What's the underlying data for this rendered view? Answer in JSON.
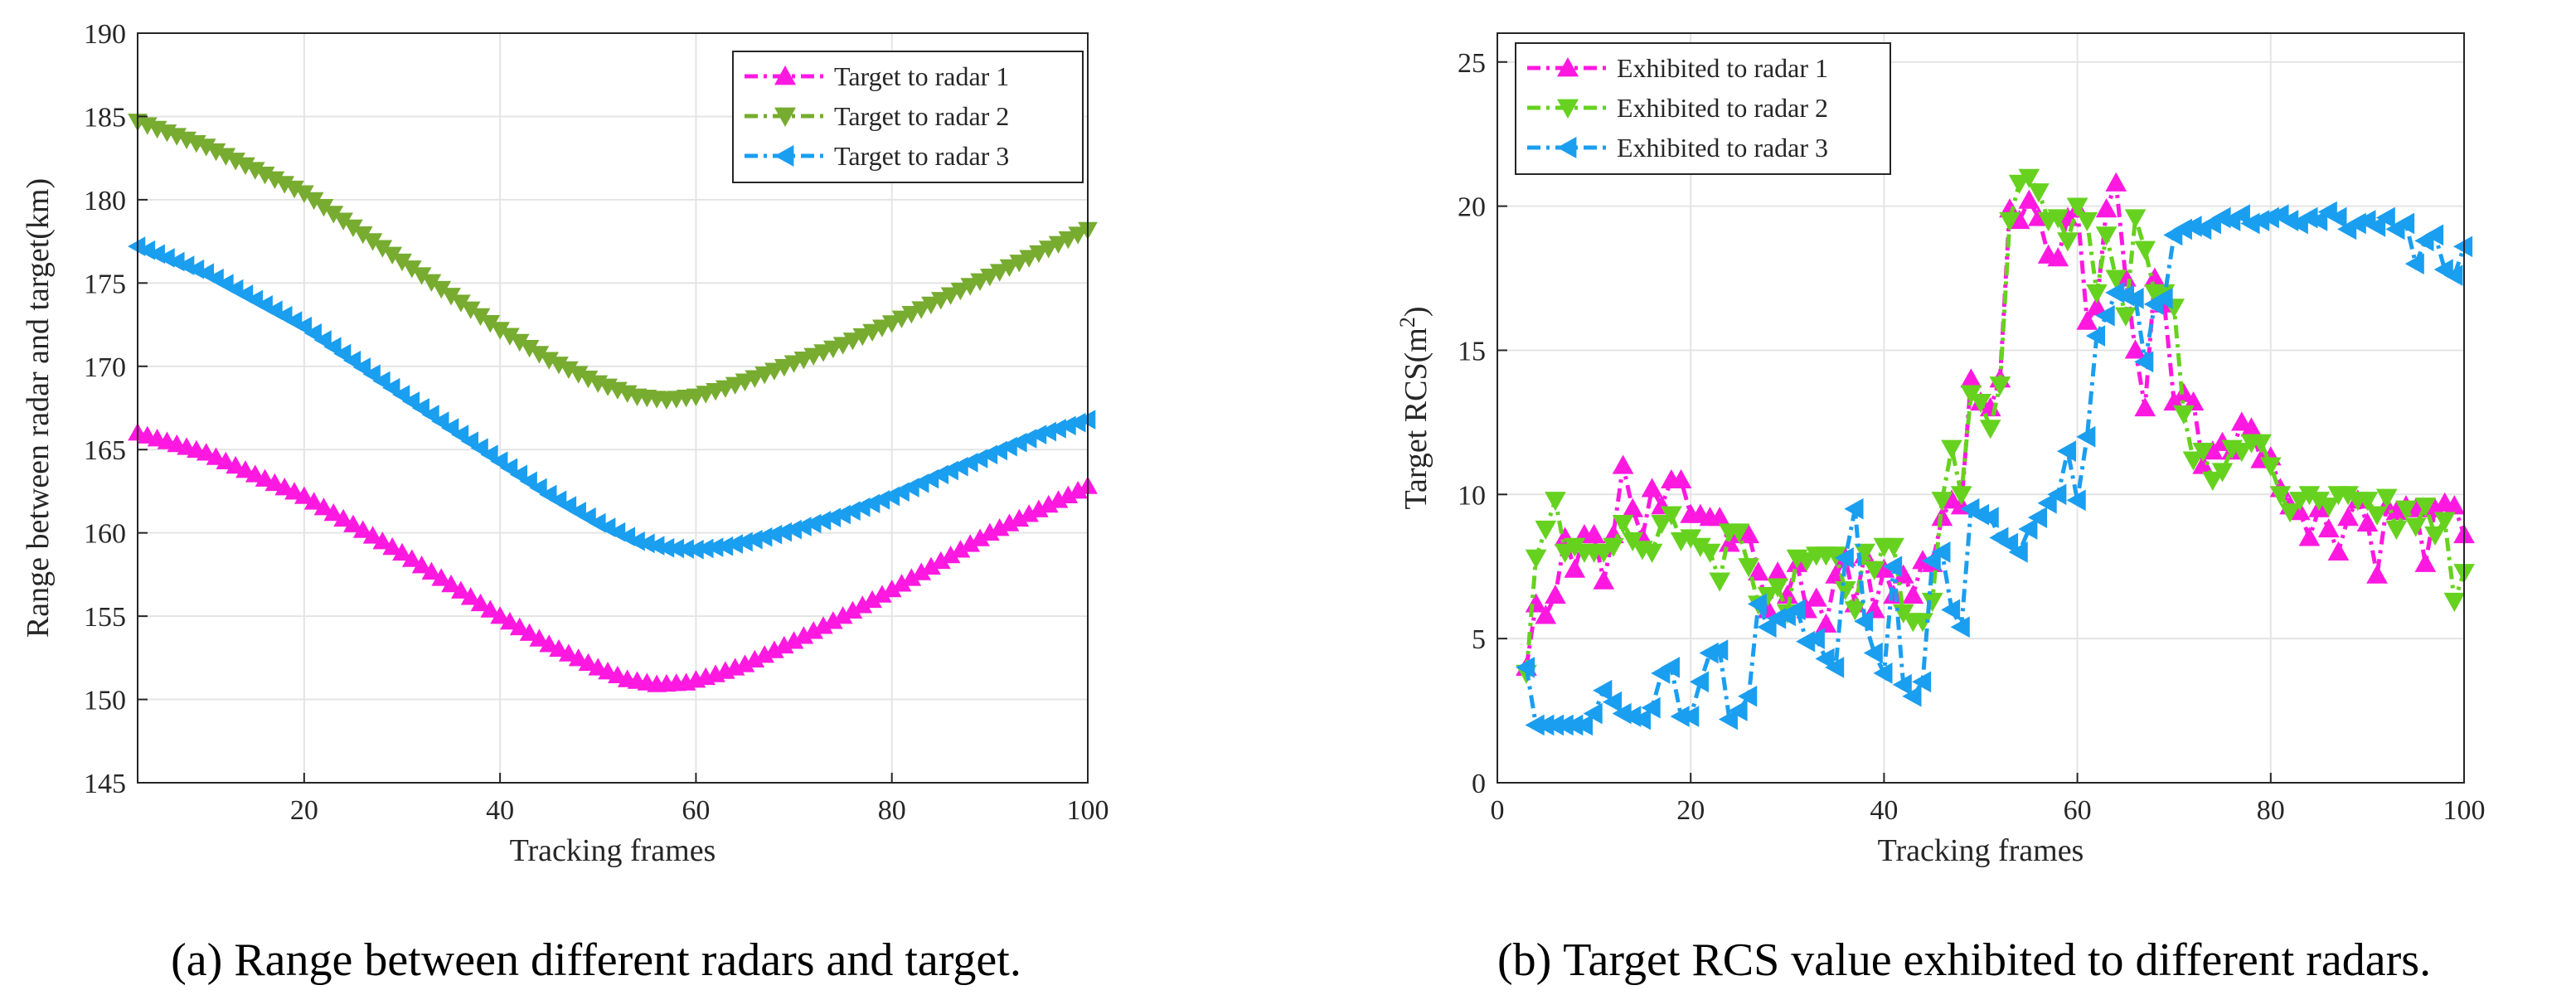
{
  "chart_data": [
    {
      "panel": "a",
      "type": "line",
      "xlabel": "Tracking frames",
      "ylabel": "Range between radar and target(km)",
      "xlim": [
        3,
        100
      ],
      "ylim": [
        145,
        190
      ],
      "xticks": [
        20,
        40,
        60,
        80,
        100
      ],
      "yticks": [
        145,
        150,
        155,
        160,
        165,
        170,
        175,
        180,
        185,
        190
      ],
      "grid": true,
      "legend_position": "top-right",
      "caption_label": "(a)",
      "caption_text": "Range between different radars and target.",
      "series": [
        {
          "name": "Target to radar 1",
          "color": "#ff19e0",
          "marker": "triangle-up",
          "x": [
            3,
            10,
            20,
            30,
            40,
            45,
            50,
            53,
            56,
            59,
            62,
            65,
            70,
            75,
            80,
            85,
            90,
            95,
            100
          ],
          "y": [
            166.0,
            164.8,
            162.2,
            158.8,
            155.0,
            153.3,
            151.9,
            151.2,
            150.9,
            151.0,
            151.5,
            152.1,
            153.5,
            155.0,
            156.6,
            158.3,
            160.0,
            161.4,
            162.8
          ]
        },
        {
          "name": "Target to radar 2",
          "color": "#77ac30",
          "marker": "triangle-down",
          "x": [
            3,
            10,
            20,
            30,
            40,
            45,
            50,
            54,
            57,
            60,
            63,
            66,
            70,
            75,
            80,
            85,
            90,
            95,
            100
          ],
          "y": [
            184.7,
            183.2,
            180.4,
            176.3,
            172.2,
            170.4,
            169.0,
            168.2,
            168.0,
            168.2,
            168.7,
            169.3,
            170.2,
            171.3,
            172.6,
            174.0,
            175.4,
            176.8,
            178.2
          ]
        },
        {
          "name": "Target to radar 3",
          "color": "#1a9ef0",
          "marker": "triangle-left",
          "x": [
            3,
            10,
            20,
            30,
            40,
            45,
            50,
            54,
            57,
            60,
            63,
            66,
            70,
            75,
            80,
            85,
            90,
            95,
            100
          ],
          "y": [
            177.2,
            175.6,
            172.4,
            168.3,
            164.3,
            162.3,
            160.6,
            159.5,
            159.1,
            159.0,
            159.2,
            159.6,
            160.2,
            161.1,
            162.2,
            163.5,
            164.7,
            165.9,
            166.8
          ]
        }
      ]
    },
    {
      "panel": "b",
      "type": "line",
      "xlabel": "Tracking frames",
      "ylabel_prefix": "Target RCS(m",
      "ylabel_sup": "2",
      "ylabel_suffix": ")",
      "xlim": [
        0,
        100
      ],
      "ylim": [
        0,
        26
      ],
      "xticks": [
        0,
        20,
        40,
        60,
        80,
        100
      ],
      "yticks": [
        0,
        5,
        10,
        15,
        20,
        25
      ],
      "grid": true,
      "legend_position": "top-left",
      "caption_label": "(b)",
      "caption_text": "Target RCS value exhibited to different radars.",
      "series": [
        {
          "name": "Exhibited to radar 1",
          "color": "#ff19e0",
          "marker": "triangle-up",
          "x": [
            3,
            4,
            5,
            6,
            7,
            8,
            9,
            10,
            11,
            12,
            13,
            14,
            15,
            16,
            17,
            18,
            19,
            20,
            21,
            22,
            23,
            24,
            25,
            26,
            27,
            28,
            29,
            30,
            31,
            32,
            33,
            34,
            35,
            36,
            37,
            38,
            39,
            40,
            41,
            42,
            43,
            44,
            45,
            46,
            47,
            48,
            49,
            50,
            51,
            52,
            53,
            54,
            55,
            56,
            57,
            58,
            59,
            60,
            61,
            62,
            63,
            64,
            65,
            66,
            67,
            68,
            69,
            70,
            71,
            72,
            73,
            74,
            75,
            76,
            77,
            78,
            79,
            80,
            81,
            82,
            83,
            84,
            85,
            86,
            87,
            88,
            89,
            90,
            91,
            92,
            93,
            94,
            95,
            96,
            97,
            98,
            99,
            100
          ],
          "y": [
            4.0,
            6.2,
            5.8,
            6.5,
            8.5,
            7.4,
            8.6,
            8.6,
            7.0,
            8.6,
            11.0,
            9.5,
            8.5,
            10.2,
            9.6,
            10.5,
            10.5,
            9.3,
            9.3,
            9.2,
            9.2,
            8.3,
            8.6,
            8.6,
            7.3,
            6.0,
            7.3,
            6.5,
            7.6,
            6.0,
            6.4,
            5.5,
            7.2,
            7.8,
            6.2,
            7.9,
            6.0,
            7.4,
            6.5,
            7.2,
            6.5,
            7.7,
            7.6,
            9.2,
            9.8,
            9.6,
            14.0,
            13.2,
            13.0,
            14.0,
            19.9,
            19.5,
            20.2,
            19.6,
            18.3,
            18.2,
            19.6,
            19.9,
            16.0,
            16.5,
            19.9,
            20.8,
            17.5,
            15.0,
            13.0,
            17.5,
            16.6,
            13.2,
            13.5,
            13.2,
            11.0,
            11.5,
            11.8,
            11.5,
            12.5,
            12.3,
            11.2,
            11.3,
            10.2,
            9.6,
            9.4,
            8.5,
            9.5,
            8.8,
            8.0,
            9.2,
            9.8,
            9.0,
            7.2,
            9.6,
            9.4,
            9.6,
            9.5,
            7.6,
            9.5,
            9.7,
            9.6,
            8.6
          ]
        },
        {
          "name": "Exhibited to radar 2",
          "color": "#66d21f",
          "marker": "triangle-down",
          "x": [
            3,
            4,
            5,
            6,
            7,
            8,
            9,
            10,
            11,
            12,
            13,
            14,
            15,
            16,
            17,
            18,
            19,
            20,
            21,
            22,
            23,
            24,
            25,
            26,
            27,
            28,
            29,
            30,
            31,
            32,
            33,
            34,
            35,
            36,
            37,
            38,
            39,
            40,
            41,
            42,
            43,
            44,
            45,
            46,
            47,
            48,
            49,
            50,
            51,
            52,
            53,
            54,
            55,
            56,
            57,
            58,
            59,
            60,
            61,
            62,
            63,
            64,
            65,
            66,
            67,
            68,
            69,
            70,
            71,
            72,
            73,
            74,
            75,
            76,
            77,
            78,
            79,
            80,
            81,
            82,
            83,
            84,
            85,
            86,
            87,
            88,
            89,
            90,
            91,
            92,
            93,
            94,
            95,
            96,
            97,
            98,
            99,
            100
          ],
          "y": [
            3.8,
            7.8,
            8.8,
            9.8,
            8.0,
            8.2,
            8.0,
            8.0,
            8.0,
            8.2,
            9.0,
            8.4,
            8.1,
            8.0,
            9.0,
            9.3,
            8.4,
            8.5,
            8.2,
            8.0,
            7.0,
            8.7,
            8.7,
            7.5,
            6.2,
            6.5,
            6.8,
            5.9,
            7.8,
            7.7,
            7.9,
            7.9,
            7.9,
            6.7,
            6.0,
            8.0,
            7.4,
            8.2,
            8.2,
            5.9,
            5.6,
            5.6,
            6.3,
            9.8,
            11.6,
            10.0,
            13.5,
            13.2,
            12.3,
            13.8,
            19.5,
            20.8,
            21.0,
            20.5,
            19.5,
            19.6,
            18.8,
            20.0,
            19.5,
            17.0,
            19.0,
            17.5,
            16.2,
            19.6,
            18.5,
            17.0,
            17.0,
            16.5,
            12.8,
            11.2,
            11.5,
            10.5,
            10.8,
            11.6,
            11.5,
            11.8,
            11.8,
            11.0,
            10.0,
            9.4,
            9.8,
            10.0,
            9.8,
            9.6,
            10.0,
            10.0,
            9.8,
            9.8,
            9.3,
            9.9,
            8.8,
            9.5,
            8.9,
            9.6,
            8.6,
            9.1,
            6.3,
            7.3
          ]
        },
        {
          "name": "Exhibited to radar 3",
          "color": "#1a9ef0",
          "marker": "triangle-left",
          "x": [
            3,
            4,
            5,
            6,
            7,
            8,
            9,
            10,
            11,
            12,
            13,
            14,
            15,
            16,
            17,
            18,
            19,
            20,
            21,
            22,
            23,
            24,
            25,
            26,
            27,
            28,
            29,
            30,
            31,
            32,
            33,
            34,
            35,
            36,
            37,
            38,
            39,
            40,
            41,
            42,
            43,
            44,
            45,
            46,
            47,
            48,
            49,
            50,
            51,
            52,
            53,
            54,
            55,
            56,
            57,
            58,
            59,
            60,
            61,
            62,
            63,
            64,
            65,
            66,
            67,
            68,
            69,
            70,
            71,
            72,
            73,
            74,
            75,
            76,
            77,
            78,
            79,
            80,
            81,
            82,
            83,
            84,
            85,
            86,
            87,
            88,
            89,
            90,
            91,
            92,
            93,
            94,
            95,
            96,
            97,
            98,
            99,
            100
          ],
          "y": [
            4.0,
            2.0,
            2.0,
            2.0,
            2.0,
            2.0,
            2.0,
            2.4,
            3.2,
            2.8,
            2.4,
            2.3,
            2.2,
            2.6,
            3.8,
            4.0,
            2.3,
            2.3,
            3.5,
            4.5,
            4.6,
            2.2,
            2.5,
            3.0,
            6.2,
            5.4,
            5.7,
            5.8,
            6.0,
            4.9,
            5.0,
            4.3,
            4.0,
            7.8,
            9.5,
            5.6,
            4.5,
            3.8,
            7.5,
            3.4,
            3.0,
            3.5,
            7.7,
            8.0,
            6.0,
            5.4,
            9.5,
            9.3,
            9.2,
            8.5,
            8.3,
            8.0,
            8.8,
            9.2,
            9.7,
            10.0,
            11.5,
            9.8,
            12.0,
            15.5,
            16.2,
            17.0,
            16.9,
            16.8,
            14.6,
            16.6,
            16.8,
            19.0,
            19.2,
            19.3,
            19.2,
            19.4,
            19.6,
            19.5,
            19.7,
            19.4,
            19.5,
            19.6,
            19.7,
            19.5,
            19.4,
            19.6,
            19.5,
            19.8,
            19.6,
            19.2,
            19.4,
            19.5,
            19.3,
            19.6,
            19.2,
            19.4,
            18.0,
            18.8,
            19.0,
            17.8,
            17.6,
            18.6
          ]
        }
      ]
    }
  ]
}
